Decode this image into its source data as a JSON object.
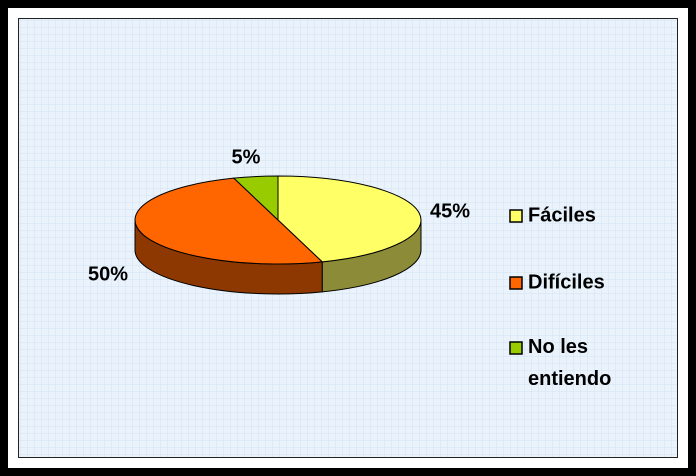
{
  "chart_data": {
    "type": "pie3d",
    "categories": [
      "Fáciles",
      "Difíciles",
      "No les entiendo"
    ],
    "values": [
      45,
      50,
      5
    ],
    "value_labels": [
      "45%",
      "50%",
      "5%"
    ],
    "colors": [
      "#ffff66",
      "#ff6600",
      "#99cc00"
    ],
    "legend": "right"
  }
}
